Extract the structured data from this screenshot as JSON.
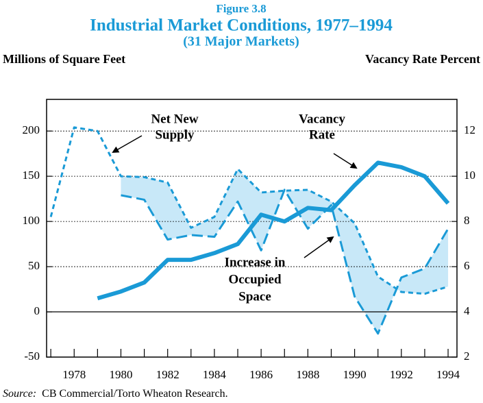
{
  "chart_data": {
    "type": "line",
    "figure_label": "Figure 3.8",
    "title": "Industrial Market Conditions, 1977–1994",
    "subtitle": "(31 Major Markets)",
    "ylabel": "Millions of Square Feet",
    "y2label": "Vacancy Rate Percent",
    "x": [
      1977,
      1978,
      1979,
      1980,
      1981,
      1982,
      1983,
      1984,
      1985,
      1986,
      1987,
      1988,
      1989,
      1990,
      1991,
      1992,
      1993,
      1994
    ],
    "series": [
      {
        "name": "Net New Supply",
        "color": "#1a9ad6",
        "dash": "short",
        "values": [
          105,
          204,
          200,
          150,
          149,
          143,
          93,
          105,
          158,
          132,
          134,
          135,
          122,
          98,
          39,
          22,
          20,
          28
        ]
      },
      {
        "name": "Increase in Occupied Space",
        "color": "#1a9ad6",
        "dash": "long",
        "values": [
          null,
          null,
          null,
          129,
          124,
          80,
          85,
          83,
          122,
          68,
          135,
          92,
          118,
          17,
          -24,
          38,
          48,
          92
        ]
      },
      {
        "name": "Vacancy Rate",
        "color": "#1a9ad6",
        "dash": "solid",
        "axis": "y2",
        "values": [
          null,
          null,
          4.6,
          4.9,
          5.3,
          6.3,
          6.3,
          6.6,
          7.0,
          8.3,
          8.0,
          8.6,
          8.5,
          9.6,
          10.6,
          10.4,
          10.0,
          8.8
        ]
      }
    ],
    "fill_between": [
      0,
      1
    ],
    "fill_color": "#c8e8f8",
    "annotations": [
      {
        "lines": [
          "Net New",
          "Supply"
        ],
        "series": 0
      },
      {
        "lines": [
          "Vacancy",
          "Rate"
        ],
        "series": 2
      },
      {
        "lines": [
          "Increase in",
          "Occupied",
          "Space"
        ],
        "series": 1
      }
    ],
    "xlim": [
      1976.82,
      1994.38
    ],
    "xticks": [
      1978,
      1980,
      1982,
      1984,
      1986,
      1988,
      1990,
      1992,
      1994
    ],
    "minor_xticks": [
      1977,
      1979,
      1981,
      1983,
      1985,
      1987,
      1989,
      1991,
      1993
    ],
    "ylim": [
      -50,
      235
    ],
    "yticks": [
      -50,
      0,
      50,
      100,
      150,
      200
    ],
    "y2lim": [
      2,
      13.4
    ],
    "y2ticks": [
      2,
      4,
      6,
      8,
      10,
      12
    ],
    "grid": true,
    "source": {
      "label": "Source:",
      "text": "CB Commercial/Torto Wheaton Research."
    }
  }
}
